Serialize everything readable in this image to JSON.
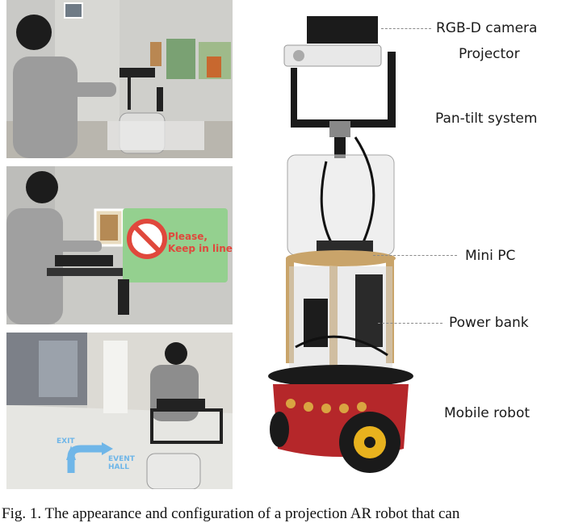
{
  "figure": {
    "labels": [
      {
        "id": "rgbd",
        "text": "RGB-D camera"
      },
      {
        "id": "projector",
        "text": "Projector"
      },
      {
        "id": "pantilt",
        "text": "Pan-tilt system"
      },
      {
        "id": "minipc",
        "text": "Mini PC"
      },
      {
        "id": "powerbank",
        "text": "Power bank"
      },
      {
        "id": "mobile",
        "text": "Mobile robot"
      }
    ],
    "panel2_sign_text": [
      "Please,",
      "Keep in line"
    ],
    "panel3_floor_text": [
      "EXIT",
      "EVENT",
      "HALL"
    ],
    "caption": "Fig. 1.  The appearance and configuration of a projection AR robot that can"
  },
  "colors": {
    "sign_green": "#8fd08a",
    "sign_red": "#e0483c",
    "robot_base_red": "#b5272a",
    "wheel_yellow": "#e8b21e",
    "floor_arrow_blue": "#6fb6e8"
  }
}
